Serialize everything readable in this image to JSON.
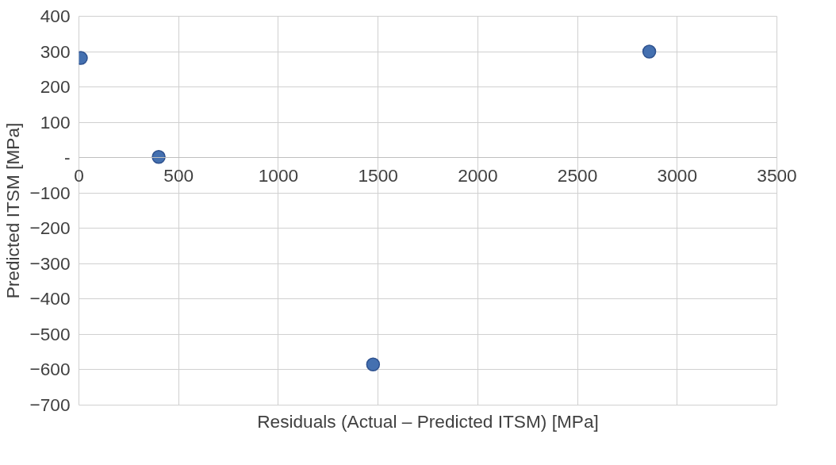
{
  "chart_data": {
    "type": "scatter",
    "xlabel": "Residuals (Actual – Predicted ITSM) [MPa]",
    "ylabel": "Predicted ITSM [MPa]",
    "x": [
      10,
      400,
      1475,
      2860
    ],
    "series": [
      {
        "color": "#4470b0",
        "values": [
          282,
          2,
          -585,
          300
        ]
      }
    ],
    "xlim": [
      0,
      3500
    ],
    "ylim": [
      -700,
      400
    ],
    "xticks": [
      0,
      500,
      1000,
      1500,
      2000,
      2500,
      3000,
      3500
    ],
    "yticks": [
      400,
      300,
      200,
      100,
      {
        "value": 0,
        "label": "-"
      },
      -100,
      -200,
      -300,
      -400,
      -500,
      -600,
      -700
    ],
    "grid": true,
    "marker": "circle"
  }
}
